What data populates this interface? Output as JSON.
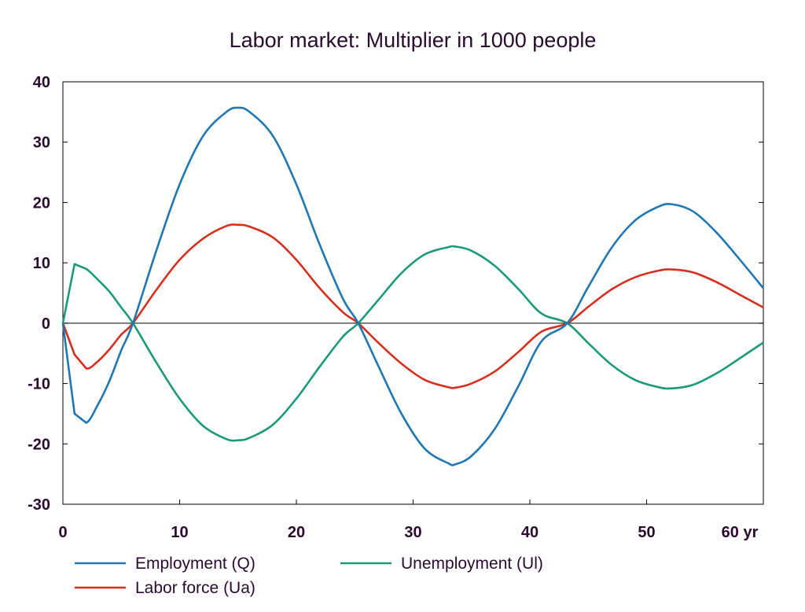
{
  "chart_data": {
    "type": "line",
    "title": "Labor market: Multiplier in 1000 people",
    "xlabel": "",
    "ylabel": "",
    "xlim": [
      0,
      60
    ],
    "ylim": [
      -30,
      40
    ],
    "xticks": [
      0,
      10,
      20,
      30,
      40,
      50,
      60
    ],
    "xtick_labels": [
      "0",
      "10",
      "20",
      "30",
      "40",
      "50",
      "60 yr"
    ],
    "yticks": [
      40,
      30,
      20,
      10,
      0,
      -10,
      -20,
      -30
    ],
    "ytick_labels": [
      "40",
      "30",
      "20",
      "10",
      "0",
      "-10",
      "-20",
      "-30"
    ],
    "grid": false,
    "legend_position": "bottom",
    "series": [
      {
        "name": "Employment (Q)",
        "color": "#1f77b4",
        "x": [
          0,
          1,
          2,
          3,
          4,
          5,
          6,
          8,
          10,
          12,
          14,
          15,
          16,
          18,
          20,
          22,
          24,
          25.3,
          27,
          29,
          31,
          33,
          33.6,
          35,
          37,
          39,
          41,
          43.2,
          45,
          47,
          49,
          51,
          52.2,
          54,
          56,
          58,
          60
        ],
        "y": [
          0,
          -15,
          -16.5,
          -13.5,
          -9.5,
          -4.5,
          0,
          12,
          23,
          31,
          35,
          35.7,
          35,
          31,
          23,
          13,
          4,
          0,
          -7,
          -15,
          -20.8,
          -23.2,
          -23.4,
          -22,
          -17.5,
          -10.5,
          -3,
          0,
          6,
          12.5,
          17,
          19.3,
          19.7,
          18.5,
          15,
          10.5,
          5.8
        ]
      },
      {
        "name": "Unemployment (Ul)",
        "color": "#1a9a7a",
        "x": [
          0,
          1,
          2,
          3,
          4,
          5,
          6,
          8,
          10,
          12,
          14,
          15,
          16,
          18,
          20,
          22,
          24,
          25.3,
          27,
          29,
          31,
          33,
          33.6,
          35,
          37,
          39,
          41,
          43.2,
          45,
          47,
          49,
          51,
          52.2,
          54,
          56,
          58,
          60
        ],
        "y": [
          0,
          9.8,
          9,
          7.2,
          5.2,
          2.6,
          0,
          -6.5,
          -12.5,
          -17,
          -19.2,
          -19.4,
          -19,
          -16.8,
          -12.5,
          -7.2,
          -2.2,
          0,
          3.8,
          8.3,
          11.4,
          12.6,
          12.7,
          12,
          9.5,
          5.7,
          1.6,
          0,
          -3.3,
          -6.9,
          -9.4,
          -10.6,
          -10.8,
          -10.2,
          -8.3,
          -5.8,
          -3.2
        ]
      },
      {
        "name": "Labor force (Ua)",
        "color": "#d62f1e",
        "x": [
          0,
          1,
          2,
          3,
          4,
          5,
          6,
          8,
          10,
          12,
          14,
          15,
          16,
          18,
          20,
          22,
          24,
          25.3,
          27,
          29,
          31,
          33,
          33.6,
          35,
          37,
          39,
          41,
          43.2,
          45,
          47,
          49,
          51,
          52.2,
          54,
          56,
          58,
          60
        ],
        "y": [
          0,
          -5.2,
          -7.5,
          -6.3,
          -4.3,
          -1.9,
          0,
          5.5,
          10.5,
          14,
          16.1,
          16.3,
          16,
          14.2,
          10.5,
          5.8,
          1.8,
          0,
          -3.2,
          -6.7,
          -9.4,
          -10.6,
          -10.7,
          -10,
          -8,
          -4.8,
          -1.4,
          0,
          2.7,
          5.6,
          7.6,
          8.7,
          8.9,
          8.4,
          6.8,
          4.7,
          2.6
        ]
      }
    ]
  }
}
